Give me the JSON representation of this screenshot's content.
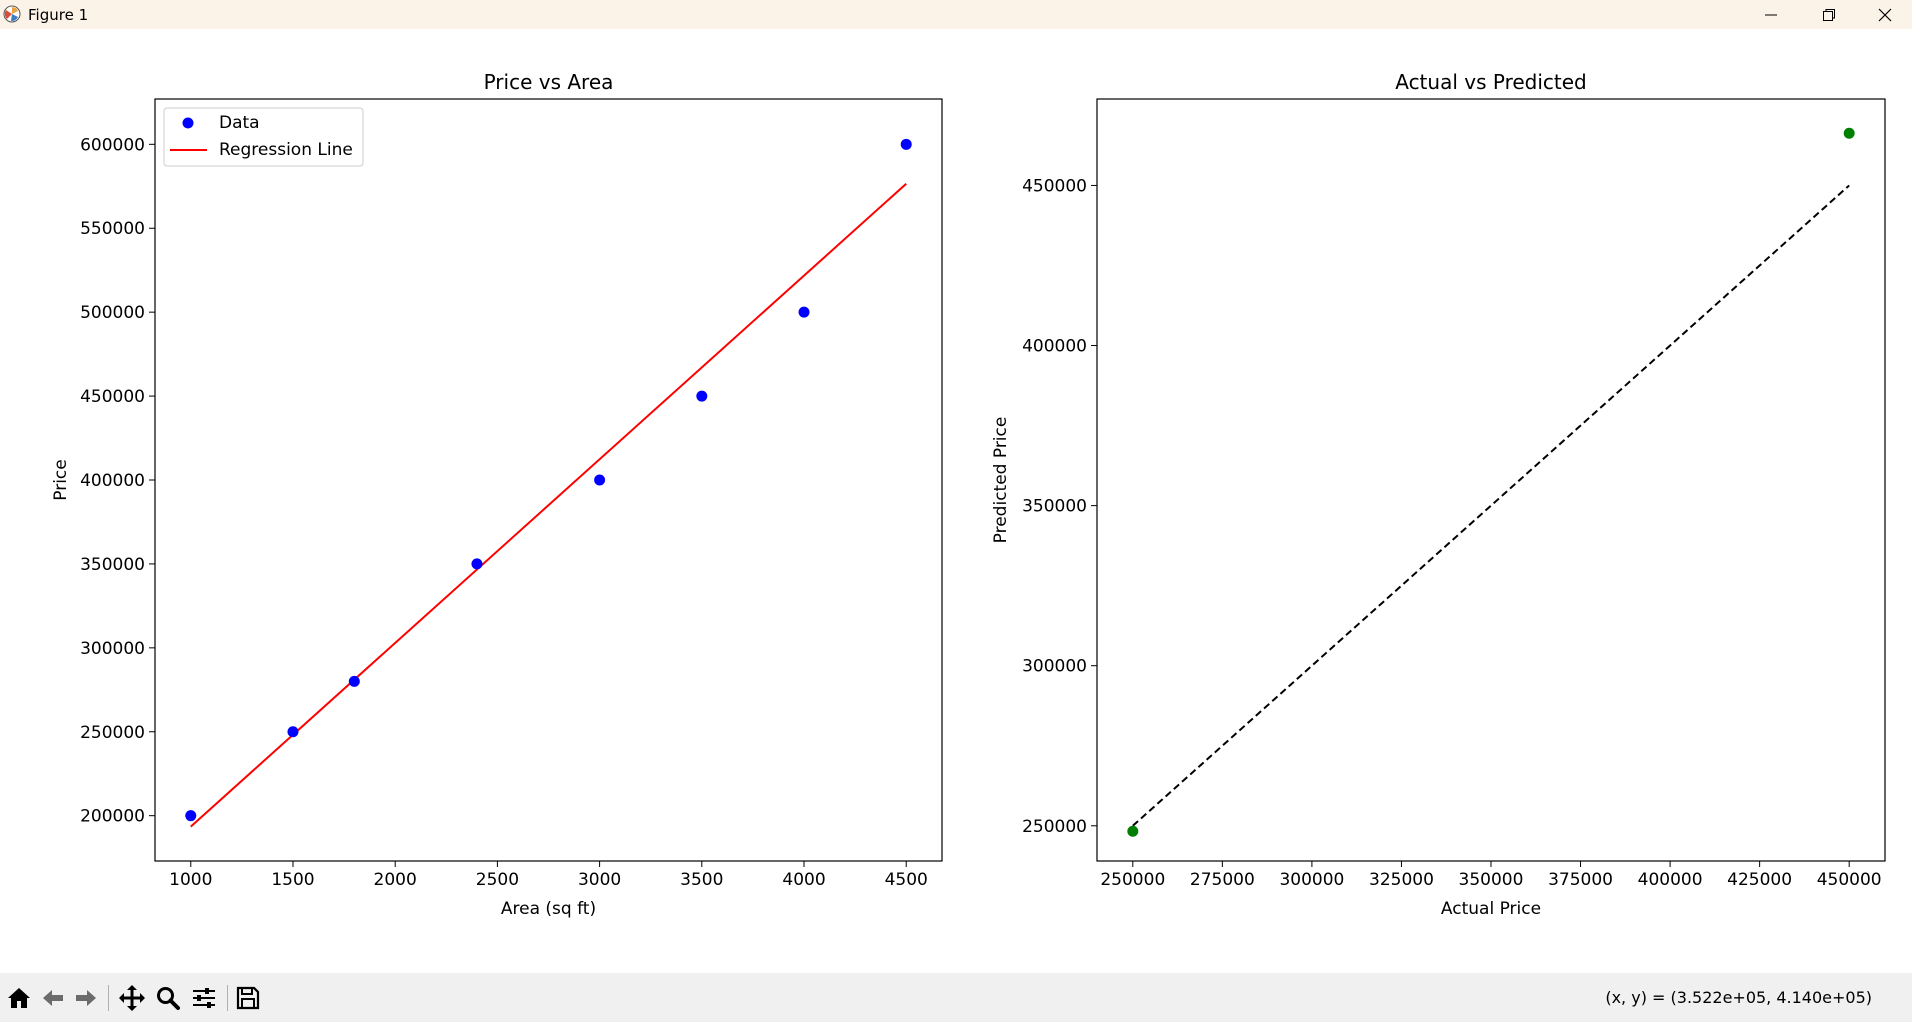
{
  "window": {
    "title": "Figure 1"
  },
  "status": {
    "coords": "(x, y) = (3.522e+05, 4.140e+05)"
  },
  "toolbar": {
    "icons": [
      "home-icon",
      "back-icon",
      "forward-icon",
      "pan-icon",
      "zoom-icon",
      "configure-subplots-icon",
      "save-icon"
    ]
  },
  "chart_data": [
    {
      "type": "scatter",
      "title": "Price vs Area",
      "xlabel": "Area (sq ft)",
      "ylabel": "Price",
      "xlim": [
        825,
        4675
      ],
      "ylim": [
        173000,
        627000
      ],
      "xticks": [
        1000,
        1500,
        2000,
        2500,
        3000,
        3500,
        4000,
        4500
      ],
      "yticks": [
        200000,
        250000,
        300000,
        350000,
        400000,
        450000,
        500000,
        550000,
        600000
      ],
      "grid": false,
      "legend": "upper left",
      "series": [
        {
          "name": "Data",
          "kind": "scatter",
          "color": "#0000ff",
          "x": [
            1000,
            1500,
            1800,
            2400,
            3000,
            3500,
            4000,
            4500
          ],
          "y": [
            200000,
            250000,
            280000,
            350000,
            400000,
            450000,
            500000,
            600000
          ]
        },
        {
          "name": "Regression Line",
          "kind": "line",
          "color": "#ff0000",
          "x": [
            1000,
            4500
          ],
          "y": [
            193500,
            576500
          ]
        }
      ]
    },
    {
      "type": "scatter",
      "title": "Actual vs Predicted",
      "xlabel": "Actual Price",
      "ylabel": "Predicted Price",
      "xlim": [
        240000,
        460000
      ],
      "ylim": [
        239000,
        477000
      ],
      "xticks": [
        250000,
        275000,
        300000,
        325000,
        350000,
        375000,
        400000,
        425000,
        450000
      ],
      "yticks": [
        250000,
        300000,
        350000,
        400000,
        450000
      ],
      "grid": false,
      "series": [
        {
          "kind": "scatter",
          "color": "#008000",
          "x": [
            250000,
            450000
          ],
          "y": [
            248300,
            466300
          ]
        },
        {
          "kind": "dashed-line",
          "color": "#000000",
          "x": [
            250000,
            450000
          ],
          "y": [
            250000,
            450000
          ]
        }
      ]
    }
  ]
}
